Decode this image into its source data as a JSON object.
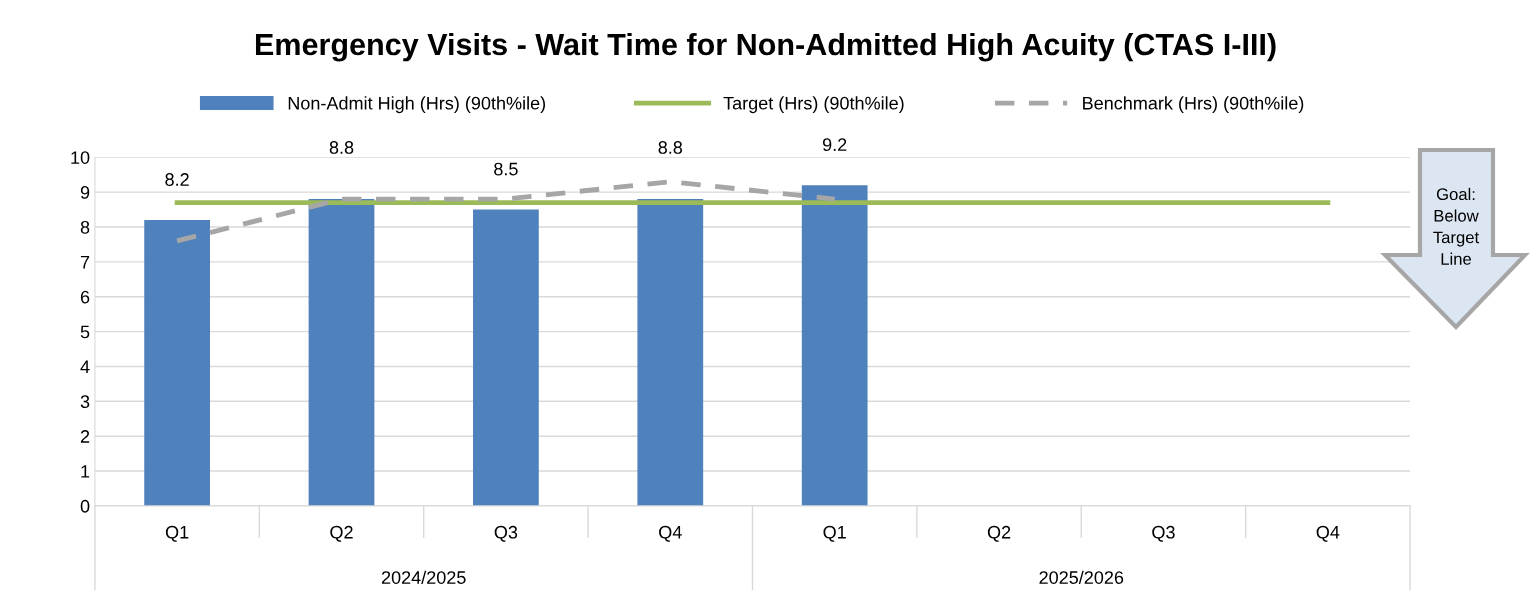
{
  "chart_data": {
    "type": "bar",
    "title": "Emergency Visits - Wait Time for Non-Admitted High Acuity (CTAS I-III)",
    "categories": [
      "Q1",
      "Q2",
      "Q3",
      "Q4",
      "Q1",
      "Q2",
      "Q3",
      "Q4"
    ],
    "series": [
      {
        "name": "Non-Admit High (Hrs) (90th%ile)",
        "color": "#4f81bd",
        "values": [
          8.2,
          8.8,
          8.5,
          8.8,
          9.2,
          null,
          null,
          null
        ],
        "value_labels": [
          "8.2",
          "8.8",
          "8.5",
          "8.8",
          "9.2",
          null,
          null,
          null
        ]
      },
      {
        "name": "Target (Hrs) (90th%ile)",
        "type": "line",
        "color": "#9bbb59",
        "line_style": "solid",
        "values": [
          8.7,
          8.7,
          8.7,
          8.7,
          8.7,
          8.7,
          8.7,
          8.7
        ]
      },
      {
        "name": "Benchmark (Hrs) (90th%ile)",
        "type": "line",
        "color": "#a6a6a6",
        "line_style": "dashed",
        "values": [
          7.6,
          8.8,
          8.8,
          9.3,
          8.8,
          null,
          null,
          null
        ]
      }
    ],
    "ylim": [
      0,
      10
    ],
    "yticks": [
      0,
      1,
      2,
      3,
      4,
      5,
      6,
      7,
      8,
      9,
      10
    ],
    "grid": "y",
    "legend": "top",
    "marker": "none",
    "annotations": [
      "2024/2025",
      "2025/2026",
      "Goal: Below Target Line"
    ]
  }
}
